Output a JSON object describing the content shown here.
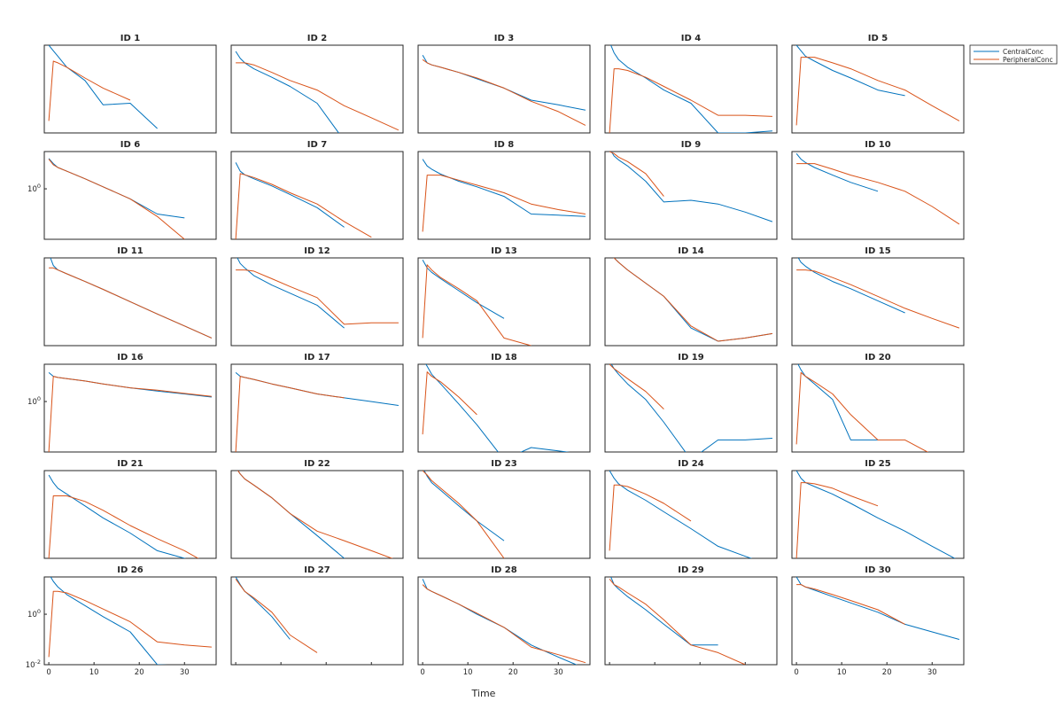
{
  "chart_data": {
    "type": "line",
    "layout": {
      "rows": 6,
      "cols": 5
    },
    "xlabel": "Time",
    "x": [
      0,
      1,
      2,
      4,
      8,
      12,
      18,
      24,
      30,
      36
    ],
    "xlim": [
      -1,
      37
    ],
    "x_ticks": [
      0,
      10,
      20,
      30
    ],
    "x_tick_labels": [
      "0",
      "10",
      "20",
      "30"
    ],
    "yscale": "log",
    "ylim": [
      0.01,
      30
    ],
    "y_ticks_row_labels": {
      "1": [
        {
          "value": 1,
          "label": "10",
          "exp": "0"
        }
      ],
      "3": [
        {
          "value": 1,
          "label": "10",
          "exp": "0"
        }
      ],
      "5": [
        {
          "value": 1,
          "label": "10",
          "exp": "0"
        },
        {
          "value": 0.01,
          "label": "10",
          "exp": "-2"
        }
      ]
    },
    "legend": {
      "location": "northeast-outside",
      "entries": [
        "CentralConc",
        "PeripheralConc"
      ]
    },
    "colors": {
      "CentralConc": "#0072BD",
      "PeripheralConc": "#D95319"
    },
    "panels": [
      {
        "title": "ID 1",
        "central": [
          30,
          18,
          11,
          4,
          1.2,
          0.13,
          0.15,
          0.015,
          null,
          null
        ],
        "peripheral": [
          0.03,
          7,
          6,
          4,
          1.5,
          0.6,
          0.2,
          null,
          null,
          null
        ]
      },
      {
        "title": "ID 2",
        "central": [
          17,
          9,
          6,
          3.5,
          1.6,
          0.7,
          0.15,
          0.005,
          null,
          null
        ],
        "peripheral": [
          6,
          6,
          6,
          5,
          2.5,
          1.2,
          0.5,
          0.12,
          0.04,
          0.013
        ]
      },
      {
        "title": "ID 3",
        "central": [
          12,
          6,
          5,
          4,
          2.5,
          1.4,
          0.6,
          0.2,
          0.13,
          0.08
        ],
        "peripheral": [
          8,
          6,
          5,
          4,
          2.5,
          1.5,
          0.6,
          0.18,
          0.07,
          0.02
        ]
      },
      {
        "title": "ID 4",
        "central": [
          40,
          15,
          8,
          4,
          1.5,
          0.5,
          0.15,
          0.01,
          0.01,
          0.012
        ],
        "peripheral": [
          0.01,
          3.5,
          3.5,
          3.0,
          1.6,
          0.7,
          0.2,
          0.05,
          0.05,
          0.045
        ]
      },
      {
        "title": "ID 5",
        "central": [
          30,
          18,
          11,
          7,
          3,
          1.5,
          0.5,
          0.3,
          null,
          null
        ],
        "peripheral": [
          0.02,
          10,
          10,
          10,
          6,
          3.5,
          1.2,
          0.5,
          0.12,
          0.03
        ]
      },
      {
        "title": "ID 6",
        "central": [
          16,
          10,
          7,
          5,
          2.5,
          1.2,
          0.4,
          0.1,
          0.07,
          null
        ],
        "peripheral": [
          15,
          9,
          7,
          5,
          2.5,
          1.2,
          0.4,
          0.08,
          0.01,
          null
        ]
      },
      {
        "title": "ID 7",
        "central": [
          11,
          5,
          3.6,
          2.5,
          1.3,
          0.6,
          0.18,
          0.03,
          null,
          null
        ],
        "peripheral": [
          0.01,
          4,
          3.6,
          2.8,
          1.5,
          0.7,
          0.25,
          0.05,
          0.012,
          null
        ]
      },
      {
        "title": "ID 8",
        "central": [
          15,
          8,
          6,
          3.8,
          2,
          1.2,
          0.5,
          0.1,
          0.09,
          0.08
        ],
        "peripheral": [
          0.02,
          3.5,
          3.5,
          3.5,
          2.2,
          1.4,
          0.7,
          0.25,
          0.15,
          0.1
        ]
      },
      {
        "title": "ID 9",
        "central": [
          40,
          20,
          14,
          8,
          2,
          0.3,
          0.35,
          0.25,
          0.12,
          0.05
        ],
        "peripheral": [
          30,
          25,
          18,
          12,
          4,
          0.5,
          null,
          null,
          null,
          null
        ]
      },
      {
        "title": "ID 10",
        "central": [
          25,
          15,
          11,
          7,
          3.5,
          1.8,
          0.8,
          null,
          null,
          null
        ],
        "peripheral": [
          10,
          10,
          10,
          10,
          6,
          3.5,
          1.8,
          0.8,
          0.2,
          0.04
        ]
      },
      {
        "title": "ID 11",
        "central": [
          45,
          15,
          10,
          7,
          3.5,
          1.7,
          0.55,
          0.18,
          0.06,
          0.02
        ],
        "peripheral": [
          12,
          12,
          10,
          7,
          3.5,
          1.7,
          0.55,
          0.18,
          0.06,
          0.02
        ]
      },
      {
        "title": "ID 12",
        "central": [
          40,
          18,
          12,
          6,
          2.5,
          1.2,
          0.4,
          0.05,
          null,
          null
        ],
        "peripheral": [
          10,
          10,
          10,
          9,
          4.5,
          2.2,
          0.8,
          0.07,
          0.08,
          0.08
        ]
      },
      {
        "title": "ID 13",
        "central": [
          25,
          12,
          8,
          4.5,
          1.5,
          0.5,
          0.12,
          null,
          null,
          null
        ],
        "peripheral": [
          0.02,
          16,
          10,
          5,
          1.8,
          0.6,
          0.02,
          0.01,
          null,
          null
        ]
      },
      {
        "title": "ID 14",
        "central": [
          45,
          30,
          20,
          10,
          3,
          0.9,
          0.05,
          0.015,
          0.02,
          0.03
        ],
        "peripheral": [
          40,
          30,
          20,
          10,
          3,
          0.9,
          0.06,
          0.015,
          0.02,
          0.03
        ]
      },
      {
        "title": "ID 15",
        "central": [
          40,
          20,
          14,
          8,
          3.5,
          1.8,
          0.6,
          0.2,
          null,
          null
        ],
        "peripheral": [
          10,
          10,
          10,
          9,
          5,
          2.6,
          0.9,
          0.3,
          0.12,
          0.05
        ]
      },
      {
        "title": "ID 16",
        "central": [
          14,
          10,
          9,
          8,
          6.5,
          5,
          3.5,
          2.6,
          2,
          1.5
        ],
        "peripheral": [
          0.01,
          10,
          9,
          8,
          6.5,
          5,
          3.5,
          2.8,
          2.1,
          1.6
        ]
      },
      {
        "title": "ID 17",
        "central": [
          14,
          10,
          9,
          7.5,
          5,
          3.5,
          2,
          1.4,
          1,
          0.7
        ],
        "peripheral": [
          0.01,
          10,
          9,
          7.5,
          5,
          3.5,
          2,
          1.4,
          null,
          null
        ]
      },
      {
        "title": "ID 18",
        "central": [
          50,
          25,
          12,
          5,
          0.8,
          0.12,
          0.005,
          0.015,
          0.011,
          0.008
        ],
        "peripheral": [
          0.05,
          15,
          10,
          6,
          1.5,
          0.3,
          null,
          null,
          null,
          null
        ]
      },
      {
        "title": "ID 19",
        "central": [
          40,
          20,
          12,
          5,
          1.2,
          0.15,
          0.005,
          0.03,
          0.03,
          0.035
        ],
        "peripheral": [
          30,
          20,
          15,
          8,
          2.5,
          0.5,
          null,
          null,
          null,
          null
        ]
      },
      {
        "title": "ID 20",
        "central": [
          40,
          18,
          10,
          5,
          1.2,
          0.03,
          0.03,
          null,
          null,
          null
        ],
        "peripheral": [
          0.02,
          14,
          10,
          6,
          2,
          0.3,
          0.03,
          0.03,
          0.008,
          0.002
        ]
      },
      {
        "title": "ID 21",
        "central": [
          20,
          10,
          6,
          3.5,
          1.2,
          0.4,
          0.1,
          0.02,
          0.01,
          0.005
        ],
        "peripheral": [
          0.01,
          3,
          3,
          3,
          1.8,
          0.8,
          0.2,
          0.06,
          0.02,
          0.005
        ]
      },
      {
        "title": "ID 22",
        "central": [
          40,
          22,
          14,
          8,
          2.5,
          0.6,
          0.08,
          0.01,
          0.001,
          null
        ],
        "peripheral": [
          40,
          22,
          14,
          8,
          2.5,
          0.6,
          0.12,
          0.05,
          0.02,
          0.008
        ]
      },
      {
        "title": "ID 23",
        "central": [
          40,
          18,
          10,
          5,
          1.2,
          0.3,
          0.05,
          null,
          null,
          null
        ],
        "peripheral": [
          30,
          20,
          12,
          6,
          1.5,
          0.3,
          0.01,
          null,
          null,
          null
        ]
      },
      {
        "title": "ID 24",
        "central": [
          30,
          15,
          9,
          5,
          2,
          0.7,
          0.15,
          0.03,
          0.012,
          0.005
        ],
        "peripheral": [
          0.02,
          8,
          8,
          7,
          3.5,
          1.5,
          0.3,
          null,
          null,
          null
        ]
      },
      {
        "title": "ID 25",
        "central": [
          30,
          15,
          10,
          7,
          3.5,
          1.5,
          0.4,
          0.12,
          0.03,
          0.008
        ],
        "peripheral": [
          0.01,
          10,
          10,
          9,
          6,
          3,
          1.2,
          null,
          null,
          null
        ]
      },
      {
        "title": "ID 26",
        "central": [
          40,
          20,
          12,
          6,
          2.2,
          0.8,
          0.2,
          0.01,
          0.009,
          null
        ],
        "peripheral": [
          0.02,
          8,
          8,
          7,
          3.5,
          1.6,
          0.5,
          0.08,
          0.06,
          0.05
        ]
      },
      {
        "title": "ID 27",
        "central": [
          30,
          15,
          8,
          4,
          0.8,
          0.1,
          null,
          null,
          null,
          null
        ],
        "peripheral": [
          25,
          14,
          8,
          4.5,
          1.2,
          0.15,
          0.03,
          null,
          null,
          null
        ]
      },
      {
        "title": "ID 28",
        "central": [
          25,
          10,
          8,
          5.5,
          2.5,
          1,
          0.3,
          0.06,
          0.02,
          0.007
        ],
        "peripheral": [
          15,
          10,
          8,
          5.5,
          2.5,
          1.1,
          0.3,
          0.05,
          0.025,
          0.012
        ]
      },
      {
        "title": "ID 29",
        "central": [
          40,
          15,
          10,
          5,
          1.5,
          0.4,
          0.06,
          0.06,
          null,
          null
        ],
        "peripheral": [
          25,
          15,
          12,
          7,
          2.5,
          0.6,
          0.06,
          0.03,
          0.01,
          0.003
        ]
      },
      {
        "title": "ID 30",
        "central": [
          30,
          15,
          12,
          9,
          5,
          2.8,
          1.2,
          0.4,
          0.2,
          0.1
        ],
        "peripheral": [
          15,
          15,
          12,
          10,
          6,
          3.5,
          1.5,
          0.4,
          null,
          null
        ]
      }
    ]
  }
}
